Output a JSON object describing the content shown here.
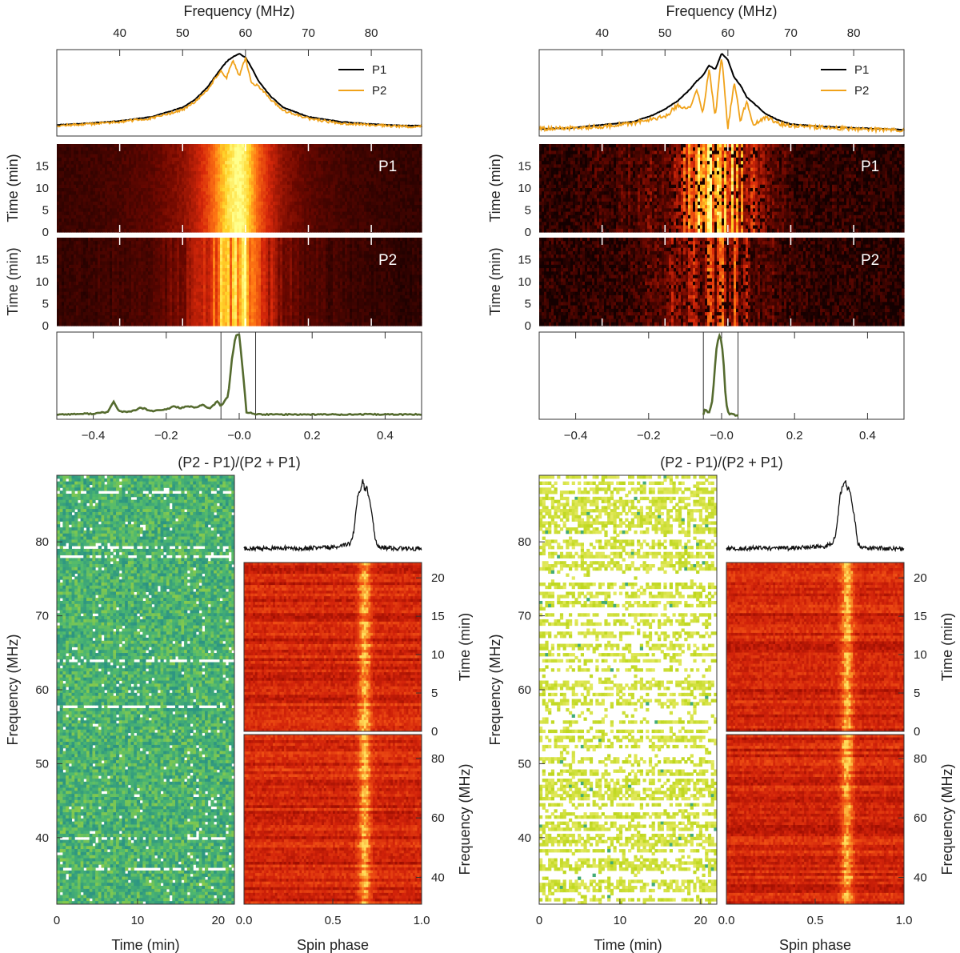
{
  "figure": {
    "colors": {
      "p1_line": "#000000",
      "p2_line": "#f0a21a",
      "frac_line": "#556b2f",
      "profile_line": "#111111",
      "hot_low": "#2a0000",
      "hot_mid": "#e03010",
      "hot_high": "#ffff70",
      "viridis_low": "#1f6f8b",
      "viridis_mid": "#4fb870",
      "viridis_high": "#e8e040"
    }
  },
  "chart_data": [
    {
      "panel_id": "left-spectrum",
      "type": "line",
      "xlabel": "Frequency (MHz)",
      "x_ticks": [
        40,
        50,
        60,
        70,
        80
      ],
      "xlim": [
        30,
        88
      ],
      "series": [
        {
          "name": "P1",
          "x": [
            30,
            35,
            40,
            45,
            50,
            52,
            54,
            56,
            57,
            58,
            59,
            60,
            61,
            62,
            64,
            66,
            70,
            75,
            80,
            85,
            88
          ],
          "y": [
            0.1,
            0.12,
            0.15,
            0.2,
            0.32,
            0.42,
            0.58,
            0.8,
            0.9,
            0.96,
            1.0,
            0.95,
            0.82,
            0.66,
            0.46,
            0.32,
            0.2,
            0.14,
            0.11,
            0.09,
            0.09
          ]
        },
        {
          "name": "P2",
          "x": [
            30,
            35,
            40,
            45,
            50,
            52,
            54,
            56,
            57,
            58,
            59,
            60,
            61,
            62,
            64,
            66,
            70,
            75,
            80,
            85,
            88
          ],
          "y": [
            0.09,
            0.11,
            0.14,
            0.18,
            0.29,
            0.39,
            0.55,
            0.78,
            0.7,
            0.92,
            0.72,
            0.94,
            0.62,
            0.6,
            0.42,
            0.28,
            0.18,
            0.12,
            0.1,
            0.08,
            0.08
          ]
        }
      ],
      "legend": {
        "entries": [
          "P1",
          "P2"
        ],
        "placement": "upper-right"
      }
    },
    {
      "panel_id": "left-dynamic",
      "type": "heatmap",
      "ylabel": "Time (min)",
      "y_ticks": [
        0,
        5,
        10,
        15
      ],
      "ylim": [
        0,
        20
      ],
      "panels": [
        "P1",
        "P2"
      ],
      "peak_frequency_mhz": 59,
      "colormap": "hot"
    },
    {
      "panel_id": "left-fraction",
      "type": "line",
      "xlabel": "(P2 - P1)/(P2 + P1)",
      "x_ticks": [
        -0.4,
        -0.2,
        -0.0,
        0.2,
        0.4
      ],
      "xlim": [
        -0.5,
        0.5
      ],
      "selection_range": [
        -0.05,
        0.045
      ],
      "series": [
        {
          "x": [
            -0.5,
            -0.4,
            -0.36,
            -0.345,
            -0.33,
            -0.3,
            -0.27,
            -0.26,
            -0.24,
            -0.2,
            -0.18,
            -0.16,
            -0.14,
            -0.12,
            -0.1,
            -0.08,
            -0.06,
            -0.05,
            -0.03,
            -0.02,
            -0.01,
            0.0,
            0.01,
            0.02,
            0.05,
            0.1,
            0.2,
            0.3,
            0.4,
            0.5
          ],
          "y": [
            0.02,
            0.03,
            0.05,
            0.18,
            0.06,
            0.05,
            0.1,
            0.09,
            0.06,
            0.08,
            0.12,
            0.1,
            0.12,
            0.1,
            0.14,
            0.09,
            0.18,
            0.12,
            0.25,
            0.7,
            0.98,
            1.0,
            0.55,
            0.05,
            0.02,
            0.02,
            0.02,
            0.02,
            0.02,
            0.02
          ]
        }
      ]
    },
    {
      "panel_id": "left-polarization-map",
      "type": "heatmap",
      "xlabel": "Time (min)",
      "ylabel": "Frequency (MHz)",
      "x_ticks": [
        0,
        10,
        20
      ],
      "xlim": [
        0,
        22
      ],
      "y_ticks": [
        40,
        50,
        60,
        70,
        80
      ],
      "ylim": [
        31,
        89
      ],
      "colormap": "viridis"
    },
    {
      "panel_id": "left-pulse-profile",
      "type": "line",
      "x": [
        0.0,
        0.1,
        0.2,
        0.3,
        0.4,
        0.5,
        0.55,
        0.6,
        0.62,
        0.64,
        0.66,
        0.67,
        0.68,
        0.69,
        0.7,
        0.72,
        0.74,
        0.76,
        0.8,
        0.9,
        1.0
      ],
      "y": [
        0.05,
        0.05,
        0.06,
        0.05,
        0.06,
        0.07,
        0.08,
        0.12,
        0.3,
        0.8,
        0.9,
        1.0,
        0.85,
        0.92,
        0.8,
        0.55,
        0.15,
        0.08,
        0.06,
        0.05,
        0.05
      ]
    },
    {
      "panel_id": "left-phase-time",
      "type": "heatmap",
      "ylabel": "Time (min)",
      "y_ticks": [
        0,
        5,
        10,
        15,
        20
      ],
      "ylim": [
        0,
        22
      ],
      "pulse_phase_center": 0.68,
      "colormap": "hot"
    },
    {
      "panel_id": "left-phase-frequency",
      "type": "heatmap",
      "xlabel": "Spin phase",
      "ylabel": "Frequency (MHz)",
      "x_ticks": [
        0.0,
        0.5,
        1.0
      ],
      "xlim": [
        0,
        1
      ],
      "y_ticks": [
        40,
        60,
        80
      ],
      "ylim": [
        31,
        88
      ],
      "pulse_phase_center": 0.68,
      "colormap": "hot"
    },
    {
      "panel_id": "right-spectrum",
      "type": "line",
      "xlabel": "Frequency (MHz)",
      "x_ticks": [
        40,
        50,
        60,
        70,
        80
      ],
      "xlim": [
        30,
        88
      ],
      "series": [
        {
          "name": "P1",
          "x": [
            30,
            35,
            40,
            45,
            48,
            50,
            52,
            54,
            55,
            56,
            57,
            58,
            59,
            60,
            61,
            62,
            63,
            64,
            66,
            68,
            70,
            75,
            80,
            85,
            88
          ],
          "y": [
            0.05,
            0.06,
            0.1,
            0.14,
            0.22,
            0.3,
            0.4,
            0.55,
            0.65,
            0.72,
            0.85,
            0.8,
            1.0,
            0.92,
            0.7,
            0.6,
            0.45,
            0.38,
            0.24,
            0.16,
            0.11,
            0.08,
            0.06,
            0.05,
            0.04
          ]
        },
        {
          "name": "P2",
          "x": [
            30,
            35,
            40,
            45,
            48,
            50,
            52,
            54,
            55,
            56,
            57,
            58,
            59,
            60,
            61,
            62,
            63,
            64,
            66,
            68,
            70,
            75,
            80,
            85,
            88
          ],
          "y": [
            0.05,
            0.06,
            0.08,
            0.12,
            0.18,
            0.2,
            0.35,
            0.3,
            0.55,
            0.25,
            0.8,
            0.2,
            0.98,
            0.05,
            0.65,
            0.15,
            0.4,
            0.1,
            0.2,
            0.12,
            0.09,
            0.07,
            0.05,
            0.04,
            0.04
          ]
        }
      ],
      "legend": {
        "entries": [
          "P1",
          "P2"
        ],
        "placement": "upper-right"
      }
    },
    {
      "panel_id": "right-dynamic",
      "type": "heatmap",
      "ylabel": "Time (min)",
      "y_ticks": [
        0,
        5,
        10,
        15
      ],
      "ylim": [
        0,
        20
      ],
      "panels": [
        "P1",
        "P2"
      ],
      "peak_frequency_mhz": 59,
      "colormap": "hot"
    },
    {
      "panel_id": "right-fraction",
      "type": "line",
      "xlabel": "(P2 - P1)/(P2 + P1)",
      "x_ticks": [
        -0.4,
        -0.2,
        -0.0,
        0.2,
        0.4
      ],
      "xlim": [
        -0.5,
        0.5
      ],
      "selection_range": [
        -0.05,
        0.045
      ],
      "series": [
        {
          "x": [
            -0.05,
            -0.045,
            -0.04,
            -0.035,
            -0.03,
            -0.025,
            -0.02,
            -0.015,
            -0.01,
            -0.005,
            0.0,
            0.005,
            0.01,
            0.015,
            0.02,
            0.03,
            0.04,
            0.045
          ],
          "y": [
            0.02,
            0.1,
            0.05,
            0.03,
            0.1,
            0.2,
            0.5,
            0.8,
            0.92,
            1.0,
            0.9,
            0.7,
            0.3,
            0.08,
            0.03,
            0.02,
            0.01,
            0.01
          ]
        }
      ]
    },
    {
      "panel_id": "right-polarization-map",
      "type": "heatmap",
      "xlabel": "Time (min)",
      "ylabel": "Frequency (MHz)",
      "x_ticks": [
        0,
        10,
        20
      ],
      "xlim": [
        0,
        22
      ],
      "y_ticks": [
        40,
        50,
        60,
        70,
        80
      ],
      "ylim": [
        31,
        89
      ],
      "colormap": "viridis"
    },
    {
      "panel_id": "right-pulse-profile",
      "type": "line",
      "x": [
        0.0,
        0.1,
        0.2,
        0.3,
        0.4,
        0.5,
        0.55,
        0.6,
        0.62,
        0.64,
        0.66,
        0.67,
        0.68,
        0.69,
        0.7,
        0.72,
        0.74,
        0.76,
        0.8,
        0.9,
        1.0
      ],
      "y": [
        0.05,
        0.05,
        0.06,
        0.05,
        0.06,
        0.07,
        0.08,
        0.12,
        0.3,
        0.8,
        0.95,
        1.0,
        0.88,
        0.92,
        0.78,
        0.5,
        0.12,
        0.07,
        0.06,
        0.05,
        0.05
      ]
    },
    {
      "panel_id": "right-phase-time",
      "type": "heatmap",
      "ylabel": "Time (min)",
      "y_ticks": [
        0,
        5,
        10,
        15,
        20
      ],
      "ylim": [
        0,
        22
      ],
      "pulse_phase_center": 0.68,
      "colormap": "hot"
    },
    {
      "panel_id": "right-phase-frequency",
      "type": "heatmap",
      "xlabel": "Spin phase",
      "ylabel": "Frequency (MHz)",
      "x_ticks": [
        0.0,
        0.5,
        1.0
      ],
      "xlim": [
        0,
        1
      ],
      "y_ticks": [
        40,
        60,
        80
      ],
      "ylim": [
        31,
        88
      ],
      "pulse_phase_center": 0.68,
      "colormap": "hot"
    }
  ]
}
